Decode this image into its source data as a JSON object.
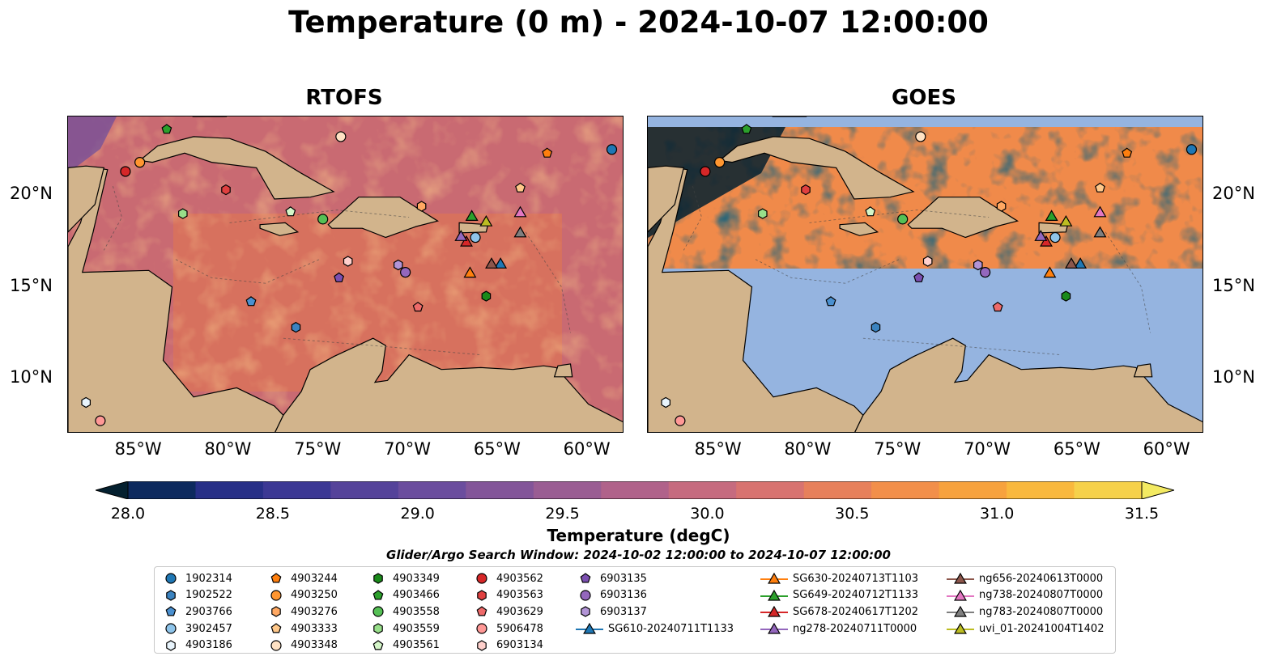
{
  "title": "Temperature (0 m) - 2024-10-07 12:00:00",
  "panels": [
    {
      "name": "RTOFS"
    },
    {
      "name": "GOES"
    }
  ],
  "lon_ticks": [
    "85°W",
    "80°W",
    "75°W",
    "70°W",
    "65°W",
    "60°W"
  ],
  "lat_ticks": [
    "20°N",
    "15°N",
    "10°N"
  ],
  "colorbar": {
    "label": "Temperature (degC)",
    "min": 28.0,
    "max": 31.5,
    "ticks": [
      "28.0",
      "28.5",
      "29.0",
      "29.5",
      "30.0",
      "30.5",
      "31.0",
      "31.5"
    ],
    "colors": [
      "#04202f",
      "#0d2a5e",
      "#272f87",
      "#3c3894",
      "#55439a",
      "#6b4d9e",
      "#835599",
      "#9a5d93",
      "#b0628a",
      "#c66b7f",
      "#d87370",
      "#e7805b",
      "#f28f4a",
      "#f7a23d",
      "#f9b83d",
      "#f6d14a",
      "#f3ea62"
    ]
  },
  "search_window": "Glider/Argo Search Window: 2024-10-02 12:00:00 to 2024-10-07 12:00:00",
  "legend": [
    [
      {
        "label": "1902314",
        "marker": "circle",
        "color": "#1f77b4"
      },
      {
        "label": "1902522",
        "marker": "hexagon",
        "color": "#3b83c0"
      },
      {
        "label": "2903766",
        "marker": "pentagon",
        "color": "#4a90d0"
      },
      {
        "label": "3902457",
        "marker": "circle",
        "color": "#8ec4ea"
      },
      {
        "label": "4903186",
        "marker": "hexagon",
        "color": "#e8f4fc"
      }
    ],
    [
      {
        "label": "4903244",
        "marker": "pentagon",
        "color": "#ff7f0e"
      },
      {
        "label": "4903250",
        "marker": "circle",
        "color": "#ff9630"
      },
      {
        "label": "4903276",
        "marker": "hexagon",
        "color": "#ffa862"
      },
      {
        "label": "4903333",
        "marker": "pentagon",
        "color": "#ffc88a"
      },
      {
        "label": "4903348",
        "marker": "circle",
        "color": "#ffe2c4"
      }
    ],
    [
      {
        "label": "4903349",
        "marker": "hexagon",
        "color": "#1a8a1a"
      },
      {
        "label": "4903466",
        "marker": "pentagon",
        "color": "#2ca02c"
      },
      {
        "label": "4903558",
        "marker": "circle",
        "color": "#55c055"
      },
      {
        "label": "4903559",
        "marker": "hexagon",
        "color": "#98df8a"
      },
      {
        "label": "4903561",
        "marker": "pentagon",
        "color": "#d4f5c8"
      }
    ],
    [
      {
        "label": "4903562",
        "marker": "circle",
        "color": "#d62728"
      },
      {
        "label": "4903563",
        "marker": "hexagon",
        "color": "#e04040"
      },
      {
        "label": "4903629",
        "marker": "pentagon",
        "color": "#ee6a6a"
      },
      {
        "label": "5906478",
        "marker": "circle",
        "color": "#ff9896"
      },
      {
        "label": "6903134",
        "marker": "hexagon",
        "color": "#ffd0cc"
      }
    ],
    [
      {
        "label": "6903135",
        "marker": "pentagon",
        "color": "#7b4fb0"
      },
      {
        "label": "6903136",
        "marker": "circle",
        "color": "#9467bd"
      },
      {
        "label": "6903137",
        "marker": "hexagon",
        "color": "#b294d6"
      },
      {
        "label": "SG610-20240711T1133",
        "marker": "triangle-line",
        "color": "#1f77b4"
      }
    ],
    [
      {
        "label": "SG630-20240713T1103",
        "marker": "triangle-line",
        "color": "#ff7f0e"
      },
      {
        "label": "SG649-20240712T1133",
        "marker": "triangle-line",
        "color": "#2ca02c"
      },
      {
        "label": "SG678-20240617T1202",
        "marker": "triangle-line",
        "color": "#d62728"
      },
      {
        "label": "ng278-20240711T0000",
        "marker": "triangle-line",
        "color": "#9467bd"
      }
    ],
    [
      {
        "label": "ng656-20240613T0000",
        "marker": "triangle-line",
        "color": "#8c564b"
      },
      {
        "label": "ng738-20240807T0000",
        "marker": "triangle-line",
        "color": "#e377c2"
      },
      {
        "label": "ng783-20240807T0000",
        "marker": "triangle-line",
        "color": "#7f7f7f"
      },
      {
        "label": "uvi_01-20241004T1402",
        "marker": "triangle-line",
        "color": "#bcbd22"
      }
    ]
  ],
  "map_data": {
    "extent": {
      "lon": [
        -89,
        -58
      ],
      "lat": [
        7,
        24.3
      ]
    },
    "land_color": "#d2b48c",
    "ocean_rtofs_color": "#c96a72",
    "goes_nodata_color": "#95b4e0",
    "floats": [
      {
        "label": "1902314",
        "lon": -58.7,
        "lat": 22.5
      },
      {
        "label": "1902522",
        "lon": -76.3,
        "lat": 12.8
      },
      {
        "label": "2903766",
        "lon": -78.8,
        "lat": 14.2
      },
      {
        "label": "3902457",
        "lon": -66.3,
        "lat": 17.7
      },
      {
        "label": "4903186",
        "lon": -88.0,
        "lat": 8.7
      },
      {
        "label": "4903244",
        "lon": -62.3,
        "lat": 22.3
      },
      {
        "label": "4903250",
        "lon": -85.0,
        "lat": 21.8
      },
      {
        "label": "4903276",
        "lon": -69.3,
        "lat": 19.4
      },
      {
        "label": "4903333",
        "lon": -63.8,
        "lat": 20.4
      },
      {
        "label": "4903348",
        "lon": -73.8,
        "lat": 23.2
      },
      {
        "label": "4903349",
        "lon": -65.7,
        "lat": 14.5
      },
      {
        "label": "4903466",
        "lon": -83.5,
        "lat": 23.6
      },
      {
        "label": "4903558",
        "lon": -74.8,
        "lat": 18.7
      },
      {
        "label": "4903559",
        "lon": -82.6,
        "lat": 19.0
      },
      {
        "label": "4903561",
        "lon": -76.6,
        "lat": 19.1
      },
      {
        "label": "4903562",
        "lon": -85.8,
        "lat": 21.3
      },
      {
        "label": "4903563",
        "lon": -80.2,
        "lat": 20.3
      },
      {
        "label": "4903629",
        "lon": -69.5,
        "lat": 13.9
      },
      {
        "label": "5906478",
        "lon": -87.2,
        "lat": 7.7
      },
      {
        "label": "6903134",
        "lon": -73.4,
        "lat": 16.4
      },
      {
        "label": "6903135",
        "lon": -73.9,
        "lat": 15.5
      },
      {
        "label": "6903136",
        "lon": -70.2,
        "lat": 15.8
      },
      {
        "label": "6903137",
        "lon": -70.6,
        "lat": 16.2
      }
    ],
    "gliders": [
      {
        "label": "SG610-20240711T1133",
        "lon": -64.9,
        "lat": 16.3
      },
      {
        "label": "SG630-20240713T1103",
        "lon": -66.6,
        "lat": 15.8
      },
      {
        "label": "SG649-20240712T1133",
        "lon": -66.5,
        "lat": 18.9
      },
      {
        "label": "SG678-20240617T1202",
        "lon": -66.8,
        "lat": 17.5
      },
      {
        "label": "ng278-20240711T0000",
        "lon": -67.1,
        "lat": 17.8
      },
      {
        "label": "ng656-20240613T0000",
        "lon": -65.4,
        "lat": 16.3
      },
      {
        "label": "ng738-20240807T0000",
        "lon": -63.8,
        "lat": 19.1
      },
      {
        "label": "ng783-20240807T0000",
        "lon": -63.8,
        "lat": 18.0
      },
      {
        "label": "uvi_01-20241004T1402",
        "lon": -65.7,
        "lat": 18.6
      }
    ]
  }
}
